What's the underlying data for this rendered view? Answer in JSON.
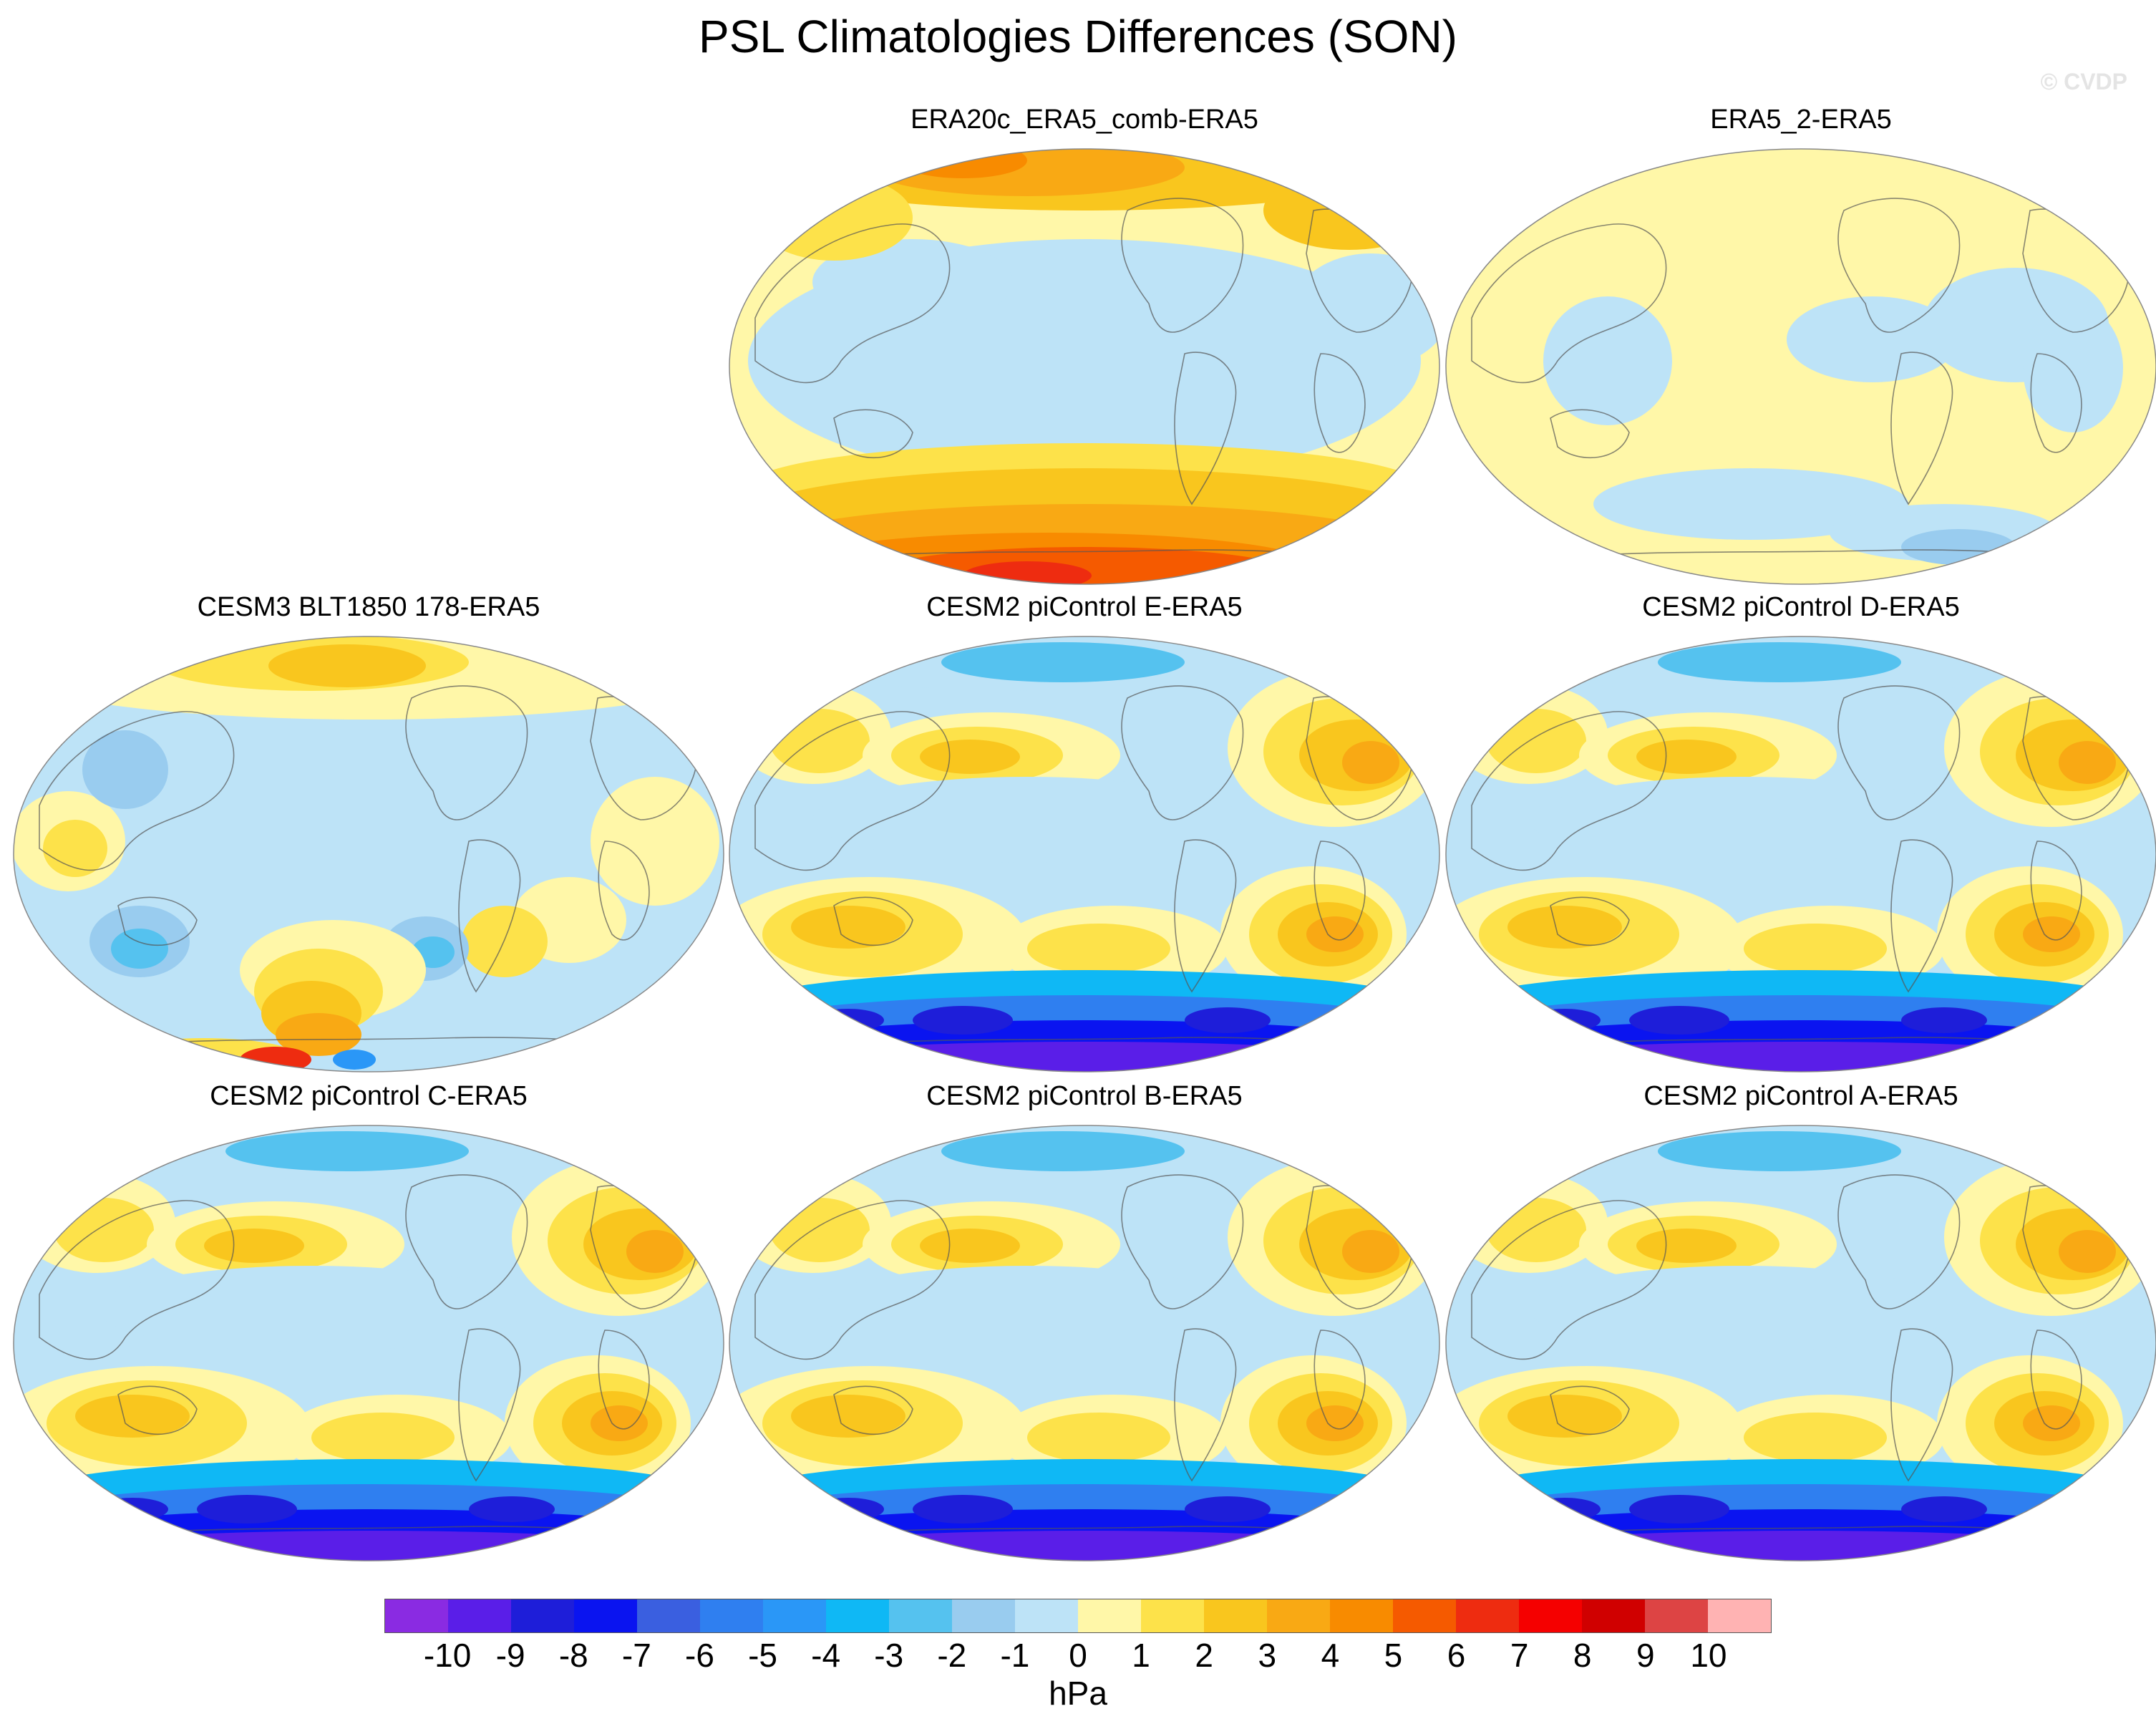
{
  "figure": {
    "title": "PSL Climatologies Differences (SON)",
    "watermark": "© CVDP"
  },
  "chart_data": {
    "type": "map",
    "projection": "Robinson / global, Pacific-centered",
    "variable": "PSL climatology difference (SON)",
    "units": "hPa",
    "panels": [
      {
        "title": "ERA20c_ERA5_comb-ERA5",
        "pattern": "era20c"
      },
      {
        "title": "ERA5_2-ERA5",
        "pattern": "era5_2"
      },
      {
        "title": "CESM3 BLT1850 178-ERA5",
        "pattern": "cesm3"
      },
      {
        "title": "CESM2 piControl E-ERA5",
        "pattern": "cesm2"
      },
      {
        "title": "CESM2 piControl D-ERA5",
        "pattern": "cesm2"
      },
      {
        "title": "CESM2 piControl C-ERA5",
        "pattern": "cesm2"
      },
      {
        "title": "CESM2 piControl B-ERA5",
        "pattern": "cesm2"
      },
      {
        "title": "CESM2 piControl A-ERA5",
        "pattern": "cesm2"
      }
    ],
    "colorbar": {
      "ticks": [
        "-10",
        "-9",
        "-8",
        "-7",
        "-6",
        "-5",
        "-4",
        "-3",
        "-2",
        "-1",
        "0",
        "1",
        "2",
        "3",
        "4",
        "5",
        "6",
        "7",
        "8",
        "9",
        "10"
      ],
      "colors": [
        "#8a2be2",
        "#5a1ee8",
        "#1e1ed9",
        "#0a14f0",
        "#3a5fe0",
        "#2f7ff0",
        "#2a97f7",
        "#0fb8f5",
        "#55c2ef",
        "#99ccef",
        "#bde3f7",
        "#fff7a8",
        "#fde24a",
        "#f9c61e",
        "#f9a914",
        "#f88b00",
        "#f55a00",
        "#ee2c10",
        "#f50000",
        "#d00000",
        "#dd4444",
        "#ffb3b3"
      ],
      "label": "hPa"
    }
  }
}
